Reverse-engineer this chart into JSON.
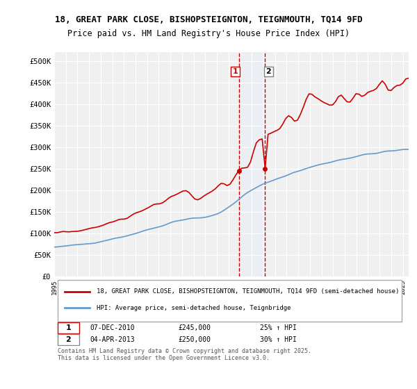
{
  "title1": "18, GREAT PARK CLOSE, BISHOPSTEIGNTON, TEIGNMOUTH, TQ14 9FD",
  "title2": "Price paid vs. HM Land Registry's House Price Index (HPI)",
  "red_label": "18, GREAT PARK CLOSE, BISHOPSTEIGNTON, TEIGNMOUTH, TQ14 9FD (semi-detached house)",
  "blue_label": "HPI: Average price, semi-detached house, Teignbridge",
  "transaction1_date": "07-DEC-2010",
  "transaction1_price": 245000,
  "transaction1_pct": "25% ↑ HPI",
  "transaction2_date": "04-APR-2013",
  "transaction2_price": 250000,
  "transaction2_pct": "30% ↑ HPI",
  "footnote": "Contains HM Land Registry data © Crown copyright and database right 2025.\nThis data is licensed under the Open Government Licence v3.0.",
  "ylim": [
    0,
    520000
  ],
  "yticks": [
    0,
    50000,
    100000,
    150000,
    200000,
    250000,
    300000,
    350000,
    400000,
    450000,
    500000
  ],
  "background_color": "#ffffff",
  "plot_bg": "#f0f0f0",
  "grid_color": "#ffffff",
  "red_color": "#cc0000",
  "blue_color": "#6699cc",
  "highlight_color": "#ddeeff",
  "vline_color": "#cc0000",
  "shade_alpha": 0.25
}
